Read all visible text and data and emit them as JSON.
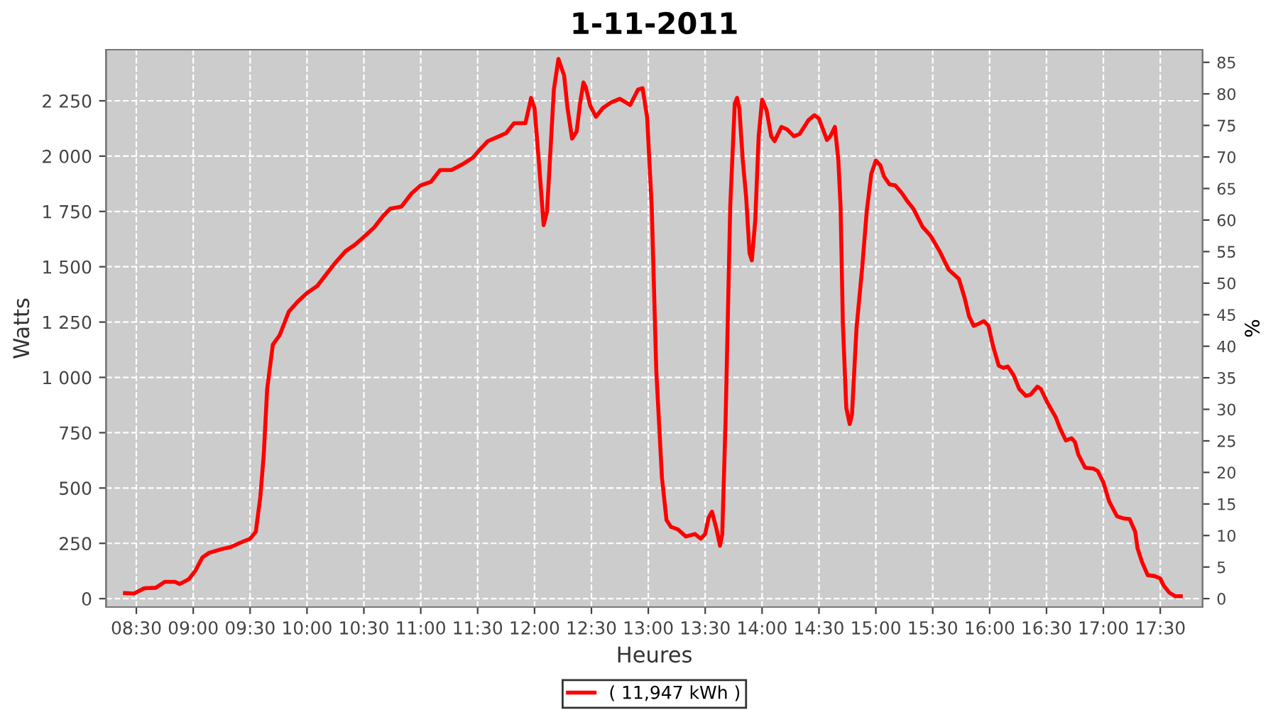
{
  "chart_data": {
    "type": "line",
    "title": "1-11-2011",
    "xlabel": "Heures",
    "ylabel": "Watts",
    "y2label": "%",
    "xlim": [
      8.234,
      17.872
    ],
    "ylim": [
      -38,
      2481
    ],
    "y2lim": [
      -1.34,
      87.0
    ],
    "xticks": [
      {
        "value": 8.5,
        "label": "08:30"
      },
      {
        "value": 9,
        "label": "09:00"
      },
      {
        "value": 9.5,
        "label": "09:30"
      },
      {
        "value": 10,
        "label": "10:00"
      },
      {
        "value": 10.5,
        "label": "10:30"
      },
      {
        "value": 11,
        "label": "11:00"
      },
      {
        "value": 11.5,
        "label": "11:30"
      },
      {
        "value": 12,
        "label": "12:00"
      },
      {
        "value": 12.5,
        "label": "12:30"
      },
      {
        "value": 13,
        "label": "13:00"
      },
      {
        "value": 13.5,
        "label": "13:30"
      },
      {
        "value": 14,
        "label": "14:00"
      },
      {
        "value": 14.5,
        "label": "14:30"
      },
      {
        "value": 15,
        "label": "15:00"
      },
      {
        "value": 15.5,
        "label": "15:30"
      },
      {
        "value": 16,
        "label": "16:00"
      },
      {
        "value": 16.5,
        "label": "16:30"
      },
      {
        "value": 17,
        "label": "17:00"
      },
      {
        "value": 17.5,
        "label": "17:30"
      }
    ],
    "yticks": [
      0,
      250,
      500,
      750,
      {
        "value": 1000,
        "label": "1 000"
      },
      {
        "value": 1250,
        "label": "1 250"
      },
      {
        "value": 1500,
        "label": "1 500"
      },
      {
        "value": 1750,
        "label": "1 750"
      },
      {
        "value": 2000,
        "label": "2 000"
      },
      {
        "value": 2250,
        "label": "2 250"
      }
    ],
    "y2ticks": [
      0,
      5,
      10,
      15,
      20,
      25,
      30,
      35,
      40,
      45,
      50,
      55,
      60,
      65,
      70,
      75,
      80,
      85
    ],
    "grid": true,
    "legend": "bottom",
    "marker": "none",
    "line_style": "solid",
    "series": [
      {
        "name": "( 11,947 kWh )",
        "color": "#ff0000",
        "x": [
          8.4,
          8.48,
          8.57,
          8.67,
          8.75,
          8.84,
          8.88,
          8.96,
          9.02,
          9.08,
          9.14,
          9.25,
          9.33,
          9.42,
          9.5,
          9.55,
          9.59,
          9.62,
          9.65,
          9.7,
          9.76,
          9.84,
          9.92,
          10.0,
          10.09,
          10.17,
          10.25,
          10.34,
          10.42,
          10.5,
          10.59,
          10.67,
          10.73,
          10.83,
          10.92,
          11.0,
          11.09,
          11.17,
          11.27,
          11.38,
          11.46,
          11.52,
          11.59,
          11.69,
          11.75,
          11.82,
          11.92,
          11.97,
          12.0,
          12.04,
          12.08,
          12.11,
          12.17,
          12.21,
          12.26,
          12.29,
          12.33,
          12.37,
          12.4,
          12.43,
          12.45,
          12.49,
          12.54,
          12.6,
          12.67,
          12.75,
          12.84,
          12.91,
          12.95,
          12.99,
          13.03,
          13.07,
          13.12,
          13.16,
          13.2,
          13.26,
          13.33,
          13.41,
          13.46,
          13.5,
          13.53,
          13.56,
          13.6,
          13.63,
          13.65,
          13.68,
          13.72,
          13.76,
          13.78,
          13.8,
          13.83,
          13.86,
          13.89,
          13.91,
          13.94,
          13.97,
          14.0,
          14.04,
          14.08,
          14.11,
          14.17,
          14.22,
          14.28,
          14.33,
          14.41,
          14.46,
          14.5,
          14.57,
          14.6,
          14.64,
          14.67,
          14.69,
          14.71,
          14.74,
          14.77,
          14.79,
          14.83,
          14.88,
          14.92,
          14.96,
          15.0,
          15.04,
          15.07,
          15.12,
          15.17,
          15.23,
          15.28,
          15.33,
          15.41,
          15.48,
          15.56,
          15.64,
          15.73,
          15.78,
          15.82,
          15.86,
          15.91,
          15.95,
          15.99,
          16.03,
          16.08,
          16.12,
          16.16,
          16.21,
          16.26,
          16.32,
          16.36,
          16.42,
          16.45,
          16.51,
          16.58,
          16.62,
          16.67,
          16.72,
          16.75,
          16.78,
          16.84,
          16.91,
          16.95,
          17.0,
          17.05,
          17.12,
          17.18,
          17.23,
          17.28,
          17.3,
          17.34,
          17.39,
          17.45,
          17.5,
          17.53,
          17.58,
          17.63,
          17.68
        ],
        "values": [
          25,
          23,
          47,
          49,
          76,
          76,
          66,
          87,
          127,
          186,
          207,
          224,
          233,
          254,
          271,
          302,
          461,
          651,
          948,
          1148,
          1191,
          1297,
          1343,
          1381,
          1413,
          1466,
          1519,
          1571,
          1599,
          1635,
          1677,
          1730,
          1762,
          1772,
          1832,
          1868,
          1884,
          1937,
          1937,
          1967,
          1994,
          2030,
          2068,
          2090,
          2104,
          2149,
          2149,
          2263,
          2217,
          1963,
          1688,
          1751,
          2301,
          2439,
          2365,
          2217,
          2079,
          2111,
          2238,
          2333,
          2312,
          2227,
          2178,
          2217,
          2242,
          2259,
          2231,
          2301,
          2307,
          2174,
          1772,
          1032,
          546,
          355,
          324,
          313,
          281,
          292,
          271,
          292,
          366,
          393,
          313,
          239,
          292,
          821,
          1772,
          2238,
          2263,
          2217,
          1984,
          1815,
          1561,
          1529,
          1709,
          2090,
          2255,
          2206,
          2090,
          2068,
          2132,
          2121,
          2090,
          2100,
          2164,
          2185,
          2170,
          2073,
          2090,
          2132,
          1984,
          1772,
          1244,
          863,
          789,
          831,
          1222,
          1497,
          1751,
          1920,
          1980,
          1958,
          1910,
          1872,
          1868,
          1832,
          1794,
          1762,
          1681,
          1641,
          1571,
          1487,
          1445,
          1360,
          1275,
          1233,
          1244,
          1254,
          1233,
          1142,
          1053,
          1043,
          1049,
          1011,
          948,
          916,
          922,
          958,
          948,
          884,
          821,
          768,
          715,
          725,
          708,
          651,
          592,
          588,
          577,
          525,
          440,
          372,
          362,
          360,
          302,
          228,
          165,
          106,
          102,
          91,
          59,
          27,
          11,
          11
        ]
      }
    ]
  }
}
